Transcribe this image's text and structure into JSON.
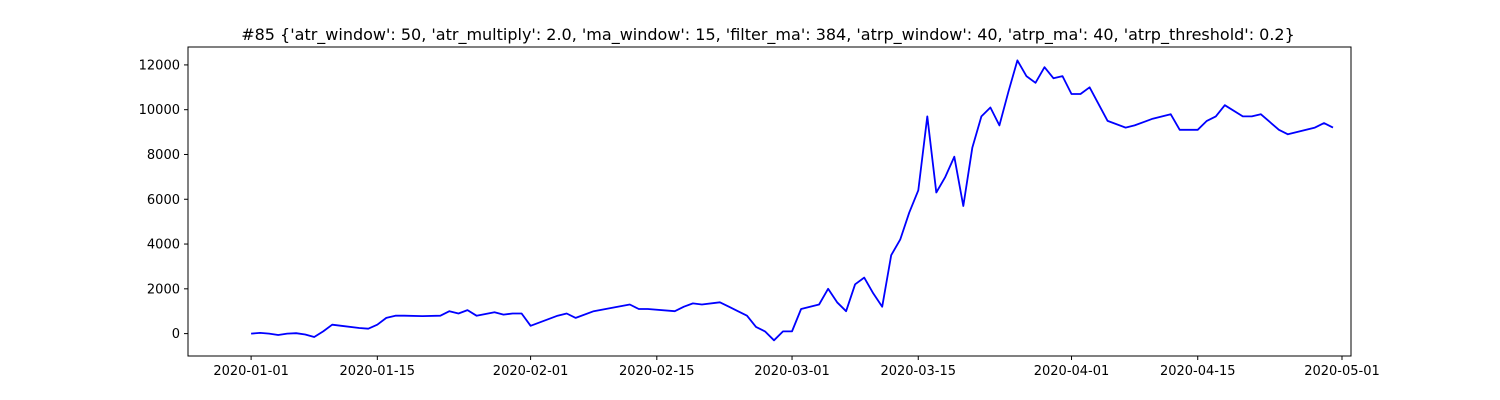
{
  "chart_data": {
    "type": "line",
    "title": "#85 {'atr_window': 50, 'atr_multiply': 2.0, 'ma_window': 15, 'filter_ma': 384, 'atrp_window': 40, 'atrp_ma': 40, 'atrp_threshold': 0.2}",
    "xlabel": "",
    "ylabel": "",
    "x_ticks": [
      "2020-01-01",
      "2020-01-15",
      "2020-02-01",
      "2020-02-15",
      "2020-03-01",
      "2020-03-15",
      "2020-04-01",
      "2020-04-15",
      "2020-05-01"
    ],
    "y_ticks": [
      0,
      2000,
      4000,
      6000,
      8000,
      10000,
      12000
    ],
    "xlim": [
      "2019-12-25",
      "2020-05-02"
    ],
    "ylim": [
      -1000,
      12800
    ],
    "grid": false,
    "line_color": "#0000ff",
    "series": [
      {
        "x": [
          "2020-01-01",
          "2020-01-02",
          "2020-01-03",
          "2020-01-04",
          "2020-01-05",
          "2020-01-06",
          "2020-01-07",
          "2020-01-08",
          "2020-01-09",
          "2020-01-10",
          "2020-01-11",
          "2020-01-13",
          "2020-01-14",
          "2020-01-15",
          "2020-01-16",
          "2020-01-17",
          "2020-01-18",
          "2020-01-20",
          "2020-01-22",
          "2020-01-23",
          "2020-01-24",
          "2020-01-25",
          "2020-01-26",
          "2020-01-28",
          "2020-01-29",
          "2020-01-30",
          "2020-01-31",
          "2020-02-01",
          "2020-02-04",
          "2020-02-05",
          "2020-02-06",
          "2020-02-08",
          "2020-02-10",
          "2020-02-12",
          "2020-02-13",
          "2020-02-14",
          "2020-02-17",
          "2020-02-18",
          "2020-02-19",
          "2020-02-20",
          "2020-02-22",
          "2020-02-23",
          "2020-02-24",
          "2020-02-25",
          "2020-02-26",
          "2020-02-27",
          "2020-02-28",
          "2020-02-29",
          "2020-03-01",
          "2020-03-02",
          "2020-03-03",
          "2020-03-04",
          "2020-03-05",
          "2020-03-06",
          "2020-03-07",
          "2020-03-08",
          "2020-03-09",
          "2020-03-10",
          "2020-03-11",
          "2020-03-12",
          "2020-03-13",
          "2020-03-14",
          "2020-03-15",
          "2020-03-16",
          "2020-03-17",
          "2020-03-18",
          "2020-03-19",
          "2020-03-20",
          "2020-03-21",
          "2020-03-22",
          "2020-03-23",
          "2020-03-24",
          "2020-03-25",
          "2020-03-26",
          "2020-03-27",
          "2020-03-28",
          "2020-03-29",
          "2020-03-30",
          "2020-03-31",
          "2020-04-01",
          "2020-04-02",
          "2020-04-03",
          "2020-04-05",
          "2020-04-07",
          "2020-04-08",
          "2020-04-10",
          "2020-04-12",
          "2020-04-13",
          "2020-04-15",
          "2020-04-16",
          "2020-04-17",
          "2020-04-18",
          "2020-04-20",
          "2020-04-21",
          "2020-04-22",
          "2020-04-24",
          "2020-04-25",
          "2020-04-28",
          "2020-04-29",
          "2020-04-30"
        ],
        "values": [
          0,
          30,
          0,
          -60,
          0,
          20,
          -40,
          -150,
          100,
          400,
          350,
          250,
          220,
          400,
          700,
          800,
          800,
          780,
          800,
          1000,
          900,
          1050,
          800,
          950,
          850,
          900,
          900,
          350,
          800,
          900,
          700,
          1000,
          1150,
          1300,
          1100,
          1100,
          1000,
          1200,
          1350,
          1300,
          1400,
          1200,
          1000,
          800,
          300,
          100,
          -300,
          100,
          100,
          1100,
          1200,
          1300,
          2000,
          1400,
          1000,
          2200,
          2500,
          1800,
          1200,
          3500,
          4200,
          5400,
          6400,
          9700,
          6300,
          7000,
          7900,
          5700,
          8300,
          9700,
          10100,
          9300,
          10800,
          12200,
          11500,
          11200,
          11900,
          11400,
          11500,
          10700,
          10700,
          11000,
          9500,
          9200,
          9300,
          9600,
          9800,
          9100,
          9100,
          9500,
          9700,
          10200,
          9700,
          9700,
          9800,
          9100,
          8900,
          9200,
          9400,
          9200
        ]
      }
    ]
  }
}
